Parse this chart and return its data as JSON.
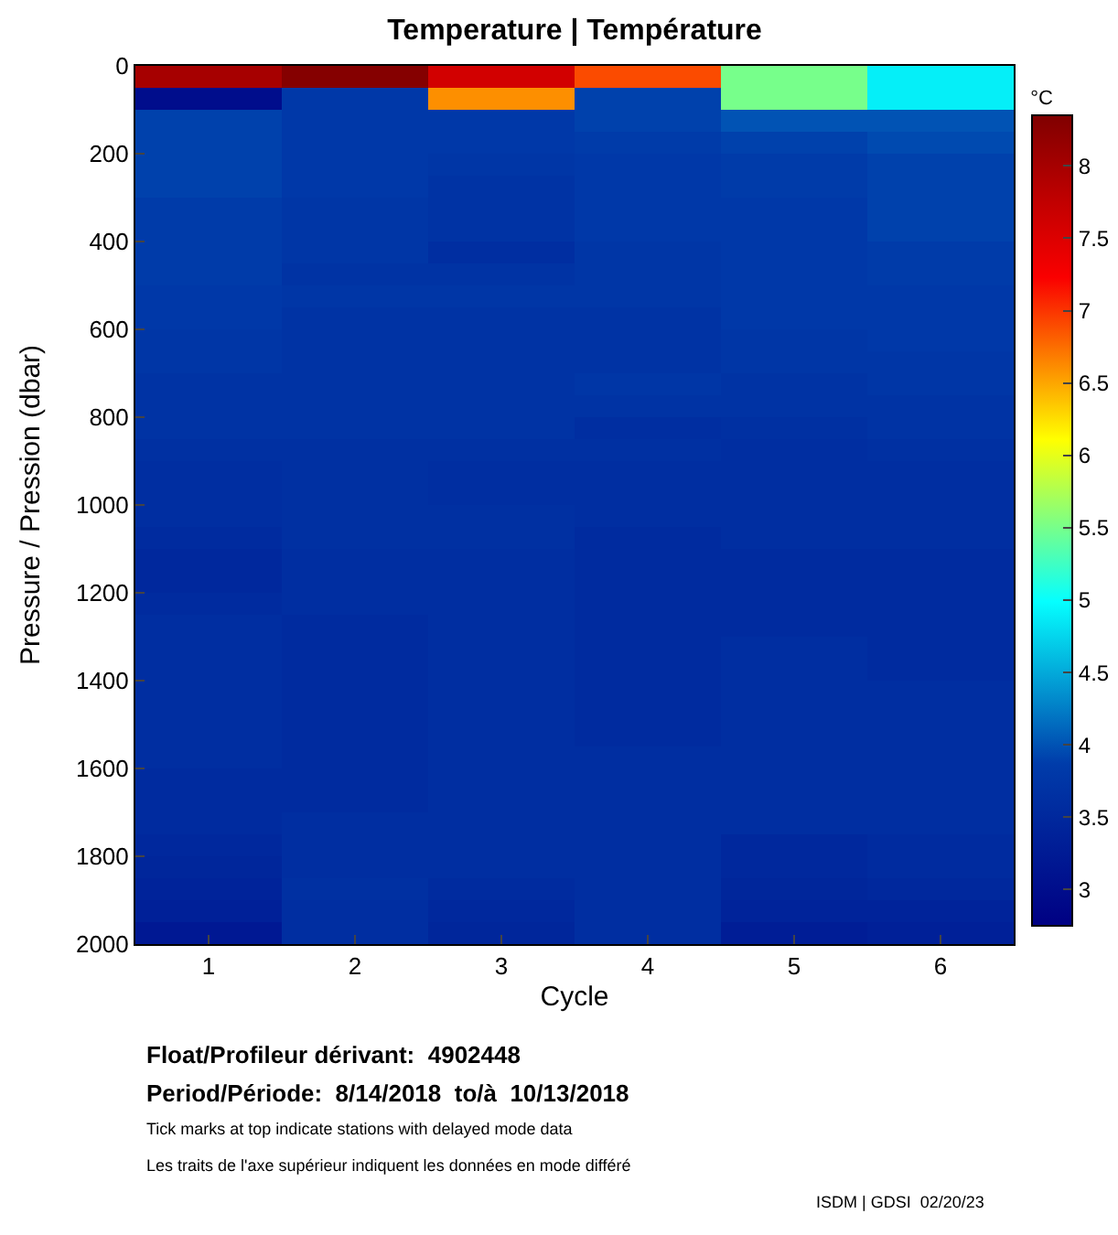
{
  "chart_data": {
    "type": "heatmap",
    "title": "Temperature | Température",
    "xlabel": "Cycle",
    "ylabel": "Pressure / Pression (dbar)",
    "clabel": "°C",
    "categories": [
      "1",
      "2",
      "3",
      "4",
      "5",
      "6"
    ],
    "y": [
      25,
      75,
      125,
      175,
      225,
      275,
      325,
      375,
      425,
      475,
      525,
      575,
      625,
      675,
      725,
      775,
      825,
      875,
      925,
      975,
      1025,
      1075,
      1125,
      1175,
      1225,
      1275,
      1325,
      1375,
      1425,
      1475,
      1525,
      1575,
      1625,
      1675,
      1725,
      1775,
      1825,
      1875,
      1925,
      1975
    ],
    "ylim": [
      2000,
      0
    ],
    "yticks": [
      0,
      200,
      400,
      600,
      800,
      1000,
      1200,
      1400,
      1600,
      1800,
      2000
    ],
    "clim": [
      2.75,
      8.35
    ],
    "cticks": [
      3,
      3.5,
      4,
      4.5,
      5,
      5.5,
      6,
      6.5,
      7,
      7.5,
      8
    ],
    "cells": [
      [
        8.0,
        8.3,
        7.6,
        6.9,
        5.5,
        4.9
      ],
      [
        3.0,
        3.8,
        6.6,
        3.9,
        5.5,
        4.9
      ],
      [
        3.9,
        3.8,
        3.8,
        3.9,
        4.0,
        4.0
      ],
      [
        3.9,
        3.8,
        3.8,
        3.85,
        3.9,
        3.95
      ],
      [
        3.9,
        3.8,
        3.75,
        3.8,
        3.85,
        3.9
      ],
      [
        3.9,
        3.8,
        3.7,
        3.8,
        3.85,
        3.9
      ],
      [
        3.85,
        3.75,
        3.7,
        3.8,
        3.8,
        3.9
      ],
      [
        3.85,
        3.75,
        3.7,
        3.8,
        3.8,
        3.9
      ],
      [
        3.85,
        3.75,
        3.6,
        3.75,
        3.8,
        3.85
      ],
      [
        3.85,
        3.7,
        3.7,
        3.75,
        3.8,
        3.85
      ],
      [
        3.8,
        3.75,
        3.75,
        3.75,
        3.8,
        3.8
      ],
      [
        3.8,
        3.7,
        3.7,
        3.7,
        3.8,
        3.8
      ],
      [
        3.75,
        3.7,
        3.7,
        3.7,
        3.75,
        3.8
      ],
      [
        3.75,
        3.7,
        3.7,
        3.7,
        3.75,
        3.75
      ],
      [
        3.7,
        3.7,
        3.7,
        3.75,
        3.7,
        3.75
      ],
      [
        3.7,
        3.7,
        3.7,
        3.7,
        3.7,
        3.7
      ],
      [
        3.7,
        3.7,
        3.7,
        3.6,
        3.65,
        3.7
      ],
      [
        3.65,
        3.65,
        3.65,
        3.65,
        3.6,
        3.65
      ],
      [
        3.6,
        3.65,
        3.6,
        3.6,
        3.6,
        3.6
      ],
      [
        3.6,
        3.65,
        3.6,
        3.6,
        3.6,
        3.6
      ],
      [
        3.6,
        3.65,
        3.65,
        3.6,
        3.6,
        3.6
      ],
      [
        3.55,
        3.65,
        3.65,
        3.55,
        3.6,
        3.6
      ],
      [
        3.5,
        3.6,
        3.6,
        3.55,
        3.55,
        3.55
      ],
      [
        3.5,
        3.6,
        3.6,
        3.55,
        3.55,
        3.55
      ],
      [
        3.55,
        3.6,
        3.6,
        3.55,
        3.55,
        3.55
      ],
      [
        3.6,
        3.55,
        3.6,
        3.55,
        3.55,
        3.55
      ],
      [
        3.6,
        3.55,
        3.6,
        3.55,
        3.6,
        3.55
      ],
      [
        3.6,
        3.55,
        3.6,
        3.55,
        3.6,
        3.55
      ],
      [
        3.6,
        3.55,
        3.6,
        3.55,
        3.6,
        3.6
      ],
      [
        3.6,
        3.55,
        3.6,
        3.55,
        3.6,
        3.6
      ],
      [
        3.6,
        3.55,
        3.6,
        3.55,
        3.6,
        3.6
      ],
      [
        3.6,
        3.55,
        3.6,
        3.6,
        3.6,
        3.6
      ],
      [
        3.55,
        3.55,
        3.6,
        3.6,
        3.6,
        3.6
      ],
      [
        3.55,
        3.55,
        3.6,
        3.6,
        3.6,
        3.6
      ],
      [
        3.55,
        3.6,
        3.6,
        3.6,
        3.6,
        3.6
      ],
      [
        3.5,
        3.6,
        3.6,
        3.6,
        3.5,
        3.55
      ],
      [
        3.45,
        3.6,
        3.6,
        3.6,
        3.5,
        3.55
      ],
      [
        3.4,
        3.65,
        3.55,
        3.6,
        3.45,
        3.5
      ],
      [
        3.35,
        3.6,
        3.5,
        3.6,
        3.4,
        3.4
      ],
      [
        3.2,
        3.6,
        3.45,
        3.6,
        3.3,
        3.35
      ]
    ],
    "annotations": [
      "Float/Profileur dérivant:  4902448",
      "Period/Période:  8/14/2018  to/à  10/13/2018",
      "Tick marks at top indicate stations with delayed mode data",
      "Les traits de l'axe supérieur indiquent les données en mode différé",
      "ISDM | GDSI  02/20/23"
    ]
  }
}
